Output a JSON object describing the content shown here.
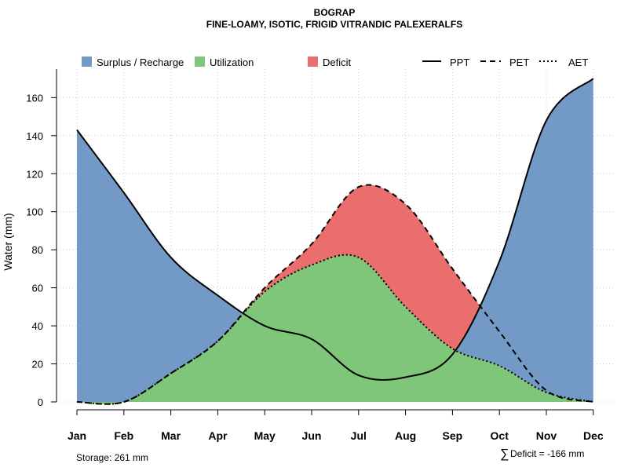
{
  "chart_data": {
    "type": "area",
    "title": "BOGRAP",
    "subtitle": "FINE-LOAMY, ISOTIC, FRIGID VITRANDIC PALEXERALFS",
    "xlabel": "",
    "ylabel": "Water (mm)",
    "ylim": [
      0,
      175
    ],
    "yticks": [
      0,
      20,
      40,
      60,
      80,
      100,
      120,
      140,
      160
    ],
    "categories": [
      "Jan",
      "Feb",
      "Mar",
      "Apr",
      "May",
      "Jun",
      "Jul",
      "Aug",
      "Sep",
      "Oct",
      "Nov",
      "Dec"
    ],
    "series": [
      {
        "name": "PPT",
        "linestyle": "solid",
        "values": [
          143,
          110,
          76,
          56,
          40,
          33,
          14,
          13,
          25,
          74,
          148,
          170
        ]
      },
      {
        "name": "PET",
        "linestyle": "dashed",
        "values": [
          0,
          0,
          15,
          32,
          60,
          83,
          113,
          104,
          70,
          37,
          6,
          0
        ]
      },
      {
        "name": "AET",
        "linestyle": "dotted",
        "values": [
          0,
          0,
          15,
          32,
          58,
          72,
          76,
          50,
          28,
          19,
          5,
          0
        ]
      }
    ],
    "legend": {
      "areas": [
        {
          "label": "Surplus / Recharge",
          "color": "#7399C6"
        },
        {
          "label": "Utilization",
          "color": "#7FC57A"
        },
        {
          "label": "Deficit",
          "color": "#EB6E6E"
        }
      ],
      "lines": [
        {
          "label": "PPT",
          "style": "solid"
        },
        {
          "label": "PET",
          "style": "dashed"
        },
        {
          "label": "AET",
          "style": "dotted"
        }
      ]
    },
    "grid": true
  },
  "footer": {
    "storage": "Storage: 261 mm",
    "deficit_symbol": "∑",
    "deficit": "Deficit = -166 mm"
  }
}
